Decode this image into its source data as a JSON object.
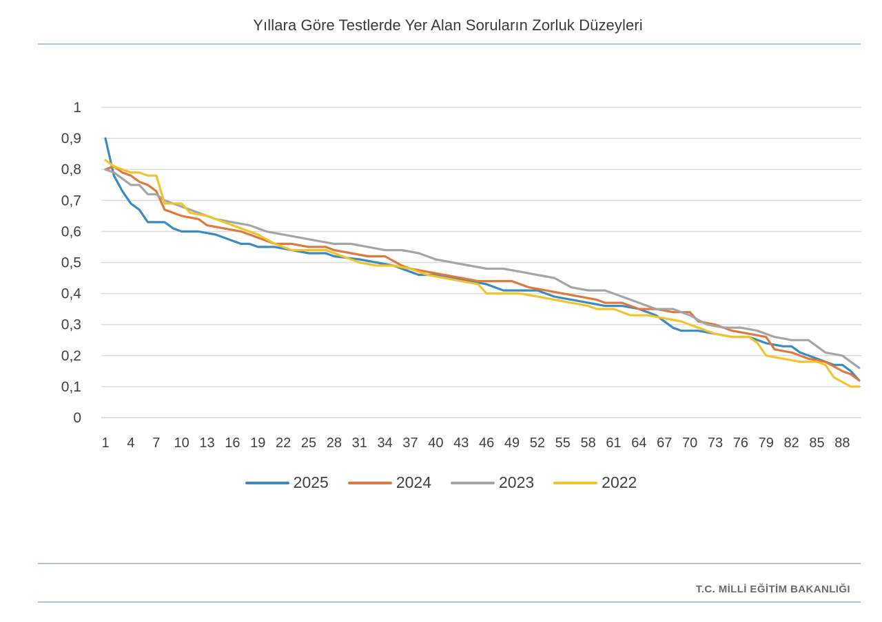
{
  "title": "Yıllara Göre Testlerde Yer Alan Soruların Zorluk Düzeyleri",
  "footer": "T.C. MİLLİ EĞİTİM BAKANLIĞI",
  "chart_data": {
    "type": "line",
    "title": "Yıllara Göre Testlerde Yer Alan Soruların Zorluk Düzeyleri",
    "xlabel": "",
    "ylabel": "",
    "x_range": [
      1,
      90
    ],
    "ylim": [
      0,
      1
    ],
    "y_ticks": [
      "0",
      "0,1",
      "0,2",
      "0,3",
      "0,4",
      "0,5",
      "0,6",
      "0,7",
      "0,8",
      "0,9",
      "1"
    ],
    "x_ticks": [
      1,
      4,
      7,
      10,
      13,
      16,
      19,
      22,
      25,
      28,
      31,
      34,
      37,
      40,
      43,
      46,
      49,
      52,
      55,
      58,
      61,
      64,
      67,
      70,
      73,
      76,
      79,
      82,
      85,
      88
    ],
    "legend_position": "bottom",
    "grid": true,
    "series": [
      {
        "name": "2025",
        "color": "#3a8bc4",
        "points": [
          [
            1,
            0.9
          ],
          [
            2,
            0.78
          ],
          [
            3,
            0.73
          ],
          [
            4,
            0.69
          ],
          [
            5,
            0.67
          ],
          [
            6,
            0.63
          ],
          [
            8,
            0.63
          ],
          [
            9,
            0.61
          ],
          [
            10,
            0.6
          ],
          [
            12,
            0.6
          ],
          [
            14,
            0.59
          ],
          [
            15,
            0.58
          ],
          [
            17,
            0.56
          ],
          [
            18,
            0.56
          ],
          [
            19,
            0.55
          ],
          [
            21,
            0.55
          ],
          [
            23,
            0.54
          ],
          [
            25,
            0.53
          ],
          [
            27,
            0.53
          ],
          [
            28,
            0.52
          ],
          [
            31,
            0.51
          ],
          [
            33,
            0.5
          ],
          [
            35,
            0.49
          ],
          [
            37,
            0.47
          ],
          [
            38,
            0.46
          ],
          [
            40,
            0.46
          ],
          [
            42,
            0.45
          ],
          [
            44,
            0.44
          ],
          [
            46,
            0.43
          ],
          [
            48,
            0.41
          ],
          [
            50,
            0.41
          ],
          [
            52,
            0.41
          ],
          [
            54,
            0.39
          ],
          [
            56,
            0.38
          ],
          [
            58,
            0.37
          ],
          [
            60,
            0.36
          ],
          [
            62,
            0.36
          ],
          [
            64,
            0.35
          ],
          [
            66,
            0.33
          ],
          [
            68,
            0.29
          ],
          [
            69,
            0.28
          ],
          [
            71,
            0.28
          ],
          [
            73,
            0.27
          ],
          [
            75,
            0.26
          ],
          [
            77,
            0.26
          ],
          [
            79,
            0.24
          ],
          [
            81,
            0.23
          ],
          [
            82,
            0.23
          ],
          [
            83,
            0.21
          ],
          [
            85,
            0.19
          ],
          [
            87,
            0.17
          ],
          [
            88,
            0.17
          ],
          [
            89,
            0.15
          ],
          [
            90,
            0.12
          ]
        ]
      },
      {
        "name": "2024",
        "color": "#e07a3c",
        "points": [
          [
            1,
            0.8
          ],
          [
            2,
            0.81
          ],
          [
            3,
            0.79
          ],
          [
            4,
            0.78
          ],
          [
            5,
            0.76
          ],
          [
            6,
            0.75
          ],
          [
            7,
            0.73
          ],
          [
            8,
            0.67
          ],
          [
            9,
            0.66
          ],
          [
            10,
            0.65
          ],
          [
            12,
            0.64
          ],
          [
            13,
            0.62
          ],
          [
            15,
            0.61
          ],
          [
            17,
            0.6
          ],
          [
            19,
            0.58
          ],
          [
            21,
            0.56
          ],
          [
            23,
            0.56
          ],
          [
            25,
            0.55
          ],
          [
            27,
            0.55
          ],
          [
            28,
            0.54
          ],
          [
            30,
            0.53
          ],
          [
            32,
            0.52
          ],
          [
            34,
            0.52
          ],
          [
            36,
            0.49
          ],
          [
            37,
            0.48
          ],
          [
            39,
            0.47
          ],
          [
            41,
            0.46
          ],
          [
            43,
            0.45
          ],
          [
            45,
            0.44
          ],
          [
            47,
            0.44
          ],
          [
            49,
            0.44
          ],
          [
            51,
            0.42
          ],
          [
            53,
            0.41
          ],
          [
            55,
            0.4
          ],
          [
            57,
            0.39
          ],
          [
            59,
            0.38
          ],
          [
            60,
            0.37
          ],
          [
            62,
            0.37
          ],
          [
            64,
            0.35
          ],
          [
            66,
            0.35
          ],
          [
            68,
            0.34
          ],
          [
            70,
            0.34
          ],
          [
            71,
            0.31
          ],
          [
            73,
            0.3
          ],
          [
            75,
            0.28
          ],
          [
            77,
            0.27
          ],
          [
            79,
            0.26
          ],
          [
            80,
            0.22
          ],
          [
            82,
            0.21
          ],
          [
            84,
            0.19
          ],
          [
            86,
            0.18
          ],
          [
            88,
            0.15
          ],
          [
            89,
            0.14
          ],
          [
            90,
            0.12
          ]
        ]
      },
      {
        "name": "2023",
        "color": "#a5a5a5",
        "points": [
          [
            1,
            0.8
          ],
          [
            2,
            0.79
          ],
          [
            3,
            0.77
          ],
          [
            4,
            0.75
          ],
          [
            5,
            0.75
          ],
          [
            6,
            0.72
          ],
          [
            7,
            0.72
          ],
          [
            8,
            0.7
          ],
          [
            10,
            0.68
          ],
          [
            12,
            0.66
          ],
          [
            14,
            0.64
          ],
          [
            16,
            0.63
          ],
          [
            18,
            0.62
          ],
          [
            20,
            0.6
          ],
          [
            22,
            0.59
          ],
          [
            24,
            0.58
          ],
          [
            26,
            0.57
          ],
          [
            28,
            0.56
          ],
          [
            30,
            0.56
          ],
          [
            32,
            0.55
          ],
          [
            34,
            0.54
          ],
          [
            36,
            0.54
          ],
          [
            38,
            0.53
          ],
          [
            40,
            0.51
          ],
          [
            42,
            0.5
          ],
          [
            44,
            0.49
          ],
          [
            46,
            0.48
          ],
          [
            48,
            0.48
          ],
          [
            50,
            0.47
          ],
          [
            52,
            0.46
          ],
          [
            54,
            0.45
          ],
          [
            56,
            0.42
          ],
          [
            58,
            0.41
          ],
          [
            60,
            0.41
          ],
          [
            62,
            0.39
          ],
          [
            64,
            0.37
          ],
          [
            66,
            0.35
          ],
          [
            68,
            0.35
          ],
          [
            70,
            0.33
          ],
          [
            72,
            0.3
          ],
          [
            74,
            0.29
          ],
          [
            76,
            0.29
          ],
          [
            78,
            0.28
          ],
          [
            80,
            0.26
          ],
          [
            82,
            0.25
          ],
          [
            84,
            0.25
          ],
          [
            86,
            0.21
          ],
          [
            88,
            0.2
          ],
          [
            89,
            0.18
          ],
          [
            90,
            0.16
          ]
        ]
      },
      {
        "name": "2022",
        "color": "#f2c42c",
        "points": [
          [
            1,
            0.83
          ],
          [
            2,
            0.81
          ],
          [
            3,
            0.8
          ],
          [
            4,
            0.79
          ],
          [
            5,
            0.79
          ],
          [
            6,
            0.78
          ],
          [
            7,
            0.78
          ],
          [
            8,
            0.69
          ],
          [
            10,
            0.69
          ],
          [
            11,
            0.66
          ],
          [
            13,
            0.65
          ],
          [
            15,
            0.63
          ],
          [
            17,
            0.61
          ],
          [
            19,
            0.59
          ],
          [
            21,
            0.56
          ],
          [
            23,
            0.54
          ],
          [
            25,
            0.54
          ],
          [
            27,
            0.54
          ],
          [
            29,
            0.52
          ],
          [
            31,
            0.5
          ],
          [
            33,
            0.49
          ],
          [
            35,
            0.49
          ],
          [
            37,
            0.48
          ],
          [
            39,
            0.46
          ],
          [
            41,
            0.45
          ],
          [
            43,
            0.44
          ],
          [
            45,
            0.43
          ],
          [
            46,
            0.4
          ],
          [
            48,
            0.4
          ],
          [
            50,
            0.4
          ],
          [
            52,
            0.39
          ],
          [
            54,
            0.38
          ],
          [
            56,
            0.37
          ],
          [
            58,
            0.36
          ],
          [
            59,
            0.35
          ],
          [
            61,
            0.35
          ],
          [
            63,
            0.33
          ],
          [
            65,
            0.33
          ],
          [
            67,
            0.32
          ],
          [
            69,
            0.31
          ],
          [
            71,
            0.29
          ],
          [
            73,
            0.27
          ],
          [
            75,
            0.26
          ],
          [
            77,
            0.26
          ],
          [
            78,
            0.24
          ],
          [
            79,
            0.2
          ],
          [
            81,
            0.19
          ],
          [
            83,
            0.18
          ],
          [
            85,
            0.18
          ],
          [
            86,
            0.17
          ],
          [
            87,
            0.13
          ],
          [
            89,
            0.1
          ],
          [
            90,
            0.1
          ]
        ]
      }
    ]
  }
}
